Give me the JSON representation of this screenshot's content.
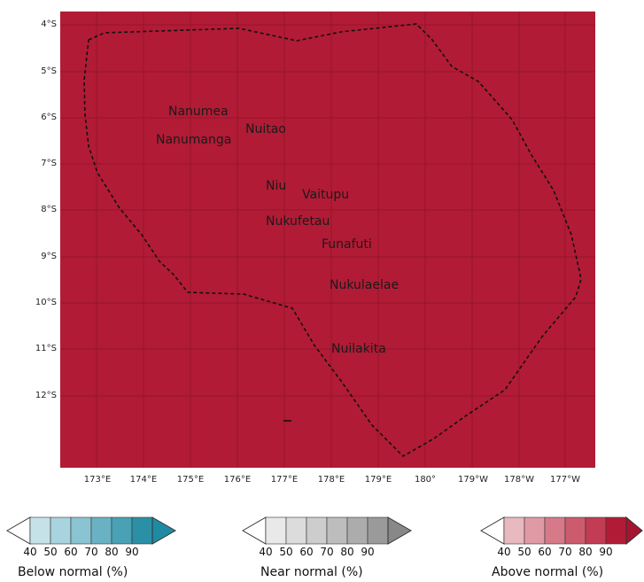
{
  "map": {
    "fill_color": "#b21b35",
    "grid_color": "#8e1428",
    "boundary_style": "dashed",
    "lat_labels": [
      "4°S",
      "5°S",
      "6°S",
      "7°S",
      "8°S",
      "9°S",
      "10°S",
      "11°S",
      "12°S"
    ],
    "lon_labels": [
      "173°E",
      "174°E",
      "175°E",
      "176°E",
      "177°E",
      "178°E",
      "179°E",
      "180°",
      "179°W",
      "178°W",
      "177°W"
    ],
    "islands": [
      {
        "name": "Nanumea"
      },
      {
        "name": "Nuitao"
      },
      {
        "name": "Nanumanga"
      },
      {
        "name": "Niu"
      },
      {
        "name": "Vaitupu"
      },
      {
        "name": "Nukufetau"
      },
      {
        "name": "Funafuti"
      },
      {
        "name": "Nukulaelae"
      },
      {
        "name": "Nuilakita"
      }
    ]
  },
  "legends": [
    {
      "title": "Below normal (%)",
      "ticks": [
        "40",
        "50",
        "60",
        "70",
        "80",
        "90"
      ],
      "colors": [
        "#c6e2e9",
        "#a9d3de",
        "#8ac3d1",
        "#6ab2c3",
        "#4aa0b4",
        "#2b8fa5"
      ],
      "extend_color": "#1f8ba3"
    },
    {
      "title": "Near normal (%)",
      "ticks": [
        "40",
        "50",
        "60",
        "70",
        "80",
        "90"
      ],
      "colors": [
        "#e9e9e9",
        "#dcdcdc",
        "#cdcdcd",
        "#bdbdbd",
        "#acacac",
        "#9a9a9a"
      ],
      "extend_color": "#888888"
    },
    {
      "title": "Above normal (%)",
      "ticks": [
        "40",
        "50",
        "60",
        "70",
        "80",
        "90"
      ],
      "colors": [
        "#e9b9c0",
        "#e09aa5",
        "#d67a89",
        "#cc5b6e",
        "#c23c53",
        "#b21b35"
      ],
      "extend_color": "#a5152f"
    }
  ]
}
